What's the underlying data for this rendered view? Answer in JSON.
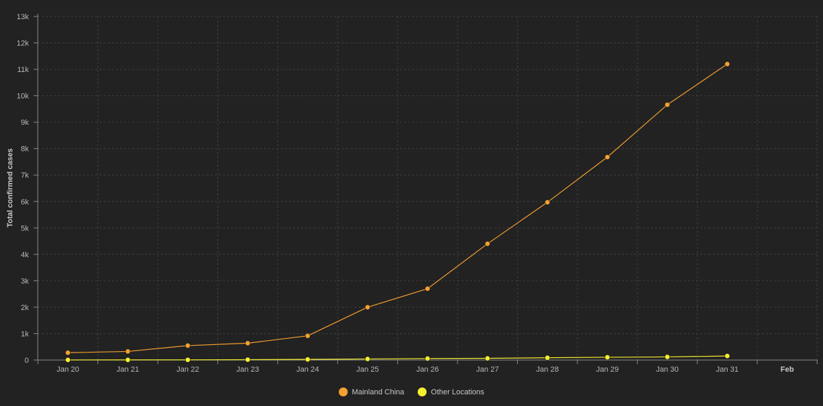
{
  "chart_data": {
    "type": "line",
    "title": "",
    "xlabel": "",
    "ylabel": "Total confirmed cases",
    "ylim": [
      0,
      13000
    ],
    "y_ticks": [
      0,
      1000,
      2000,
      3000,
      4000,
      5000,
      6000,
      7000,
      8000,
      9000,
      10000,
      11000,
      12000,
      13000
    ],
    "y_tick_labels": [
      "0",
      "1k",
      "2k",
      "3k",
      "4k",
      "5k",
      "6k",
      "7k",
      "8k",
      "9k",
      "10k",
      "11k",
      "12k",
      "13k"
    ],
    "x_tick_labels": [
      "Jan 20",
      "Jan 21",
      "Jan 22",
      "Jan 23",
      "Jan 24",
      "Jan 25",
      "Jan 26",
      "Jan 27",
      "Jan 28",
      "Jan 29",
      "Jan 30",
      "Jan 31",
      "Feb"
    ],
    "x": [
      "Jan 20",
      "Jan 21",
      "Jan 22",
      "Jan 23",
      "Jan 24",
      "Jan 25",
      "Jan 26",
      "Jan 27",
      "Jan 28",
      "Jan 29",
      "Jan 30",
      "Jan 31"
    ],
    "grid": true,
    "legend_position": "bottom",
    "series": [
      {
        "name": "Mainland China",
        "color": "#f5a030",
        "values": [
          278,
          326,
          547,
          639,
          916,
          2000,
          2700,
          4400,
          5970,
          7680,
          9660,
          11200
        ]
      },
      {
        "name": "Other Locations",
        "color": "#f5f030",
        "values": [
          4,
          6,
          8,
          14,
          25,
          40,
          57,
          64,
          87,
          105,
          118,
          153
        ]
      }
    ]
  }
}
